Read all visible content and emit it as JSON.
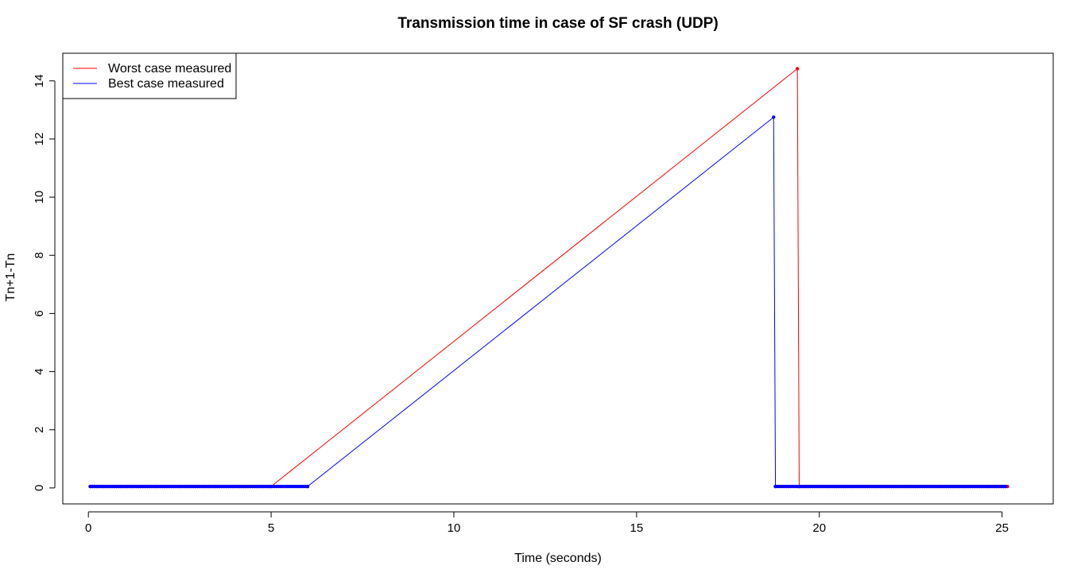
{
  "chart_data": {
    "type": "line",
    "title": "Transmission time in case of SF crash (UDP)",
    "xlabel": "Time (seconds)",
    "ylabel": "Tn+1-Tn",
    "xlim": [
      -0.7,
      26.4
    ],
    "ylim": [
      -0.55,
      14.95
    ],
    "xticks": [
      0,
      5,
      10,
      15,
      20,
      25
    ],
    "yticks": [
      0,
      2,
      4,
      6,
      8,
      10,
      12,
      14
    ],
    "grid": false,
    "legend_position": "top-left",
    "series": [
      {
        "name": "Worst case measured",
        "color": "#ff0000",
        "x": [
          5.0,
          19.4,
          19.45
        ],
        "y": [
          0.05,
          14.42,
          0.05
        ],
        "dense_baseline": [
          {
            "from": 0.05,
            "to": 5.0,
            "step": 0.06,
            "y": 0.05
          },
          {
            "from": 19.45,
            "to": 25.15,
            "step": 0.06,
            "y": 0.05
          }
        ]
      },
      {
        "name": "Best case measured",
        "color": "#0000ff",
        "x": [
          6.0,
          18.75,
          18.8
        ],
        "y": [
          0.05,
          12.75,
          0.05
        ],
        "dense_baseline": [
          {
            "from": 0.05,
            "to": 6.0,
            "step": 0.06,
            "y": 0.05
          },
          {
            "from": 18.8,
            "to": 25.15,
            "step": 0.06,
            "y": 0.05
          }
        ]
      }
    ]
  }
}
